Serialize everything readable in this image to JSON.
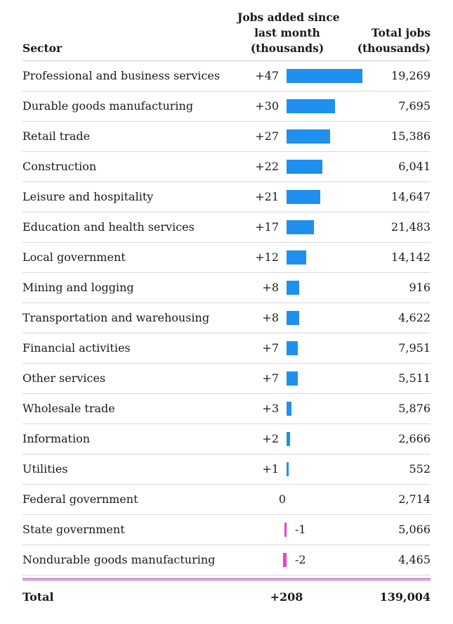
{
  "headers": {
    "sector": "Sector",
    "jobs_line1": "Jobs added since",
    "jobs_line2": "last month",
    "jobs_line3": "(thousands)",
    "total_line1": "Total jobs",
    "total_line2": "(thousands)"
  },
  "colors": {
    "positive": "#1f8ff0",
    "negative": "#f23fc8",
    "separator": "#a04bb8"
  },
  "chart_data": {
    "type": "table",
    "columns": [
      "Sector",
      "Jobs added since last month (thousands)",
      "Total jobs (thousands)"
    ],
    "rows": [
      {
        "sector": "Professional and business services",
        "change": 47,
        "change_label": "+47",
        "total": "19,269"
      },
      {
        "sector": "Durable goods manufacturing",
        "change": 30,
        "change_label": "+30",
        "total": "7,695"
      },
      {
        "sector": "Retail trade",
        "change": 27,
        "change_label": "+27",
        "total": "15,386"
      },
      {
        "sector": "Construction",
        "change": 22,
        "change_label": "+22",
        "total": "6,041"
      },
      {
        "sector": "Leisure and hospitality",
        "change": 21,
        "change_label": "+21",
        "total": "14,647"
      },
      {
        "sector": "Education and health services",
        "change": 17,
        "change_label": "+17",
        "total": "21,483"
      },
      {
        "sector": "Local government",
        "change": 12,
        "change_label": "+12",
        "total": "14,142"
      },
      {
        "sector": "Mining and logging",
        "change": 8,
        "change_label": "+8",
        "total": "916"
      },
      {
        "sector": "Transportation and warehousing",
        "change": 8,
        "change_label": "+8",
        "total": "4,622"
      },
      {
        "sector": "Financial activities",
        "change": 7,
        "change_label": "+7",
        "total": "7,951"
      },
      {
        "sector": "Other services",
        "change": 7,
        "change_label": "+7",
        "total": "5,511"
      },
      {
        "sector": "Wholesale trade",
        "change": 3,
        "change_label": "+3",
        "total": "5,876"
      },
      {
        "sector": "Information",
        "change": 2,
        "change_label": "+2",
        "total": "2,666"
      },
      {
        "sector": "Utilities",
        "change": 1,
        "change_label": "+1",
        "total": "552"
      },
      {
        "sector": "Federal government",
        "change": 0,
        "change_label": "0",
        "total": "2,714"
      },
      {
        "sector": "State government",
        "change": -1,
        "change_label": "-1",
        "total": "5,066"
      },
      {
        "sector": "Nondurable goods manufacturing",
        "change": -2,
        "change_label": "-2",
        "total": "4,465"
      }
    ],
    "total": {
      "sector": "Total",
      "change": 208,
      "change_label": "+208",
      "total": "139,004"
    }
  }
}
